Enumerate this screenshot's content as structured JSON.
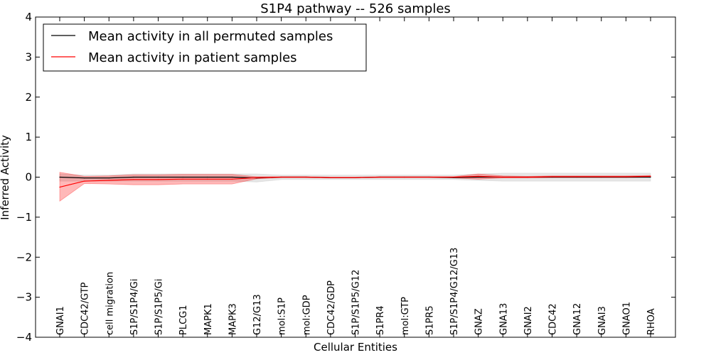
{
  "chart_data": {
    "type": "line",
    "title": "S1P4 pathway -- 526 samples",
    "xlabel": "Cellular Entities",
    "ylabel": "Inferred Activity",
    "ylim": [
      -4,
      4
    ],
    "yticks": [
      4,
      3,
      2,
      1,
      0,
      -1,
      -2,
      -3,
      -4
    ],
    "ytick_labels": [
      "4",
      "3",
      "2",
      "1",
      "0",
      "−1",
      "−2",
      "−3",
      "−4"
    ],
    "grid": false,
    "legend_position": "top-left",
    "categories": [
      "GNAI1",
      "CDC42/GTP",
      "cell migration",
      "S1P/S1P4/Gi",
      "S1P/S1P5/Gi",
      "PLCG1",
      "MAPK1",
      "MAPK3",
      "G12/G13",
      "mol:S1P",
      "mol:GDP",
      "CDC42/GDP",
      "S1P/S1P5/G12",
      "S1PR4",
      "mol:GTP",
      "S1PR5",
      "S1P/S1P4/G12/G13",
      "GNAZ",
      "GNA13",
      "GNAI2",
      "CDC42",
      "GNA12",
      "GNAI3",
      "GNAO1",
      "RHOA"
    ],
    "series": [
      {
        "name": "Mean activity in all permuted samples",
        "color": "#000000",
        "band_color": "#c8c8c8",
        "values": [
          0.0,
          -0.02,
          -0.02,
          0.0,
          0.0,
          0.0,
          0.0,
          0.0,
          -0.02,
          0.0,
          0.0,
          -0.01,
          -0.01,
          0.0,
          0.0,
          0.0,
          -0.01,
          0.0,
          0.0,
          0.0,
          0.0,
          0.0,
          0.0,
          0.0,
          0.0
        ],
        "upper": [
          0.08,
          0.05,
          0.05,
          0.08,
          0.08,
          0.08,
          0.08,
          0.08,
          0.08,
          0.05,
          0.05,
          0.05,
          0.05,
          0.05,
          0.05,
          0.05,
          0.05,
          0.08,
          0.1,
          0.1,
          0.1,
          0.1,
          0.1,
          0.1,
          0.1
        ],
        "lower": [
          -0.1,
          -0.1,
          -0.1,
          -0.1,
          -0.1,
          -0.1,
          -0.1,
          -0.1,
          -0.12,
          -0.06,
          -0.06,
          -0.06,
          -0.06,
          -0.06,
          -0.06,
          -0.06,
          -0.06,
          -0.08,
          -0.1,
          -0.1,
          -0.1,
          -0.1,
          -0.1,
          -0.1,
          -0.1
        ]
      },
      {
        "name": "Mean activity in patient samples",
        "color": "#ff0000",
        "band_color": "#ff0000",
        "values": [
          -0.25,
          -0.1,
          -0.08,
          -0.06,
          -0.06,
          -0.05,
          -0.05,
          -0.05,
          -0.01,
          0.0,
          0.0,
          -0.01,
          -0.01,
          0.0,
          0.0,
          0.0,
          0.0,
          0.02,
          0.0,
          0.0,
          0.01,
          0.01,
          0.01,
          0.01,
          0.02
        ],
        "upper": [
          0.12,
          0.02,
          0.03,
          0.06,
          0.06,
          0.07,
          0.07,
          0.07,
          0.01,
          0.01,
          0.01,
          0.0,
          0.0,
          0.01,
          0.01,
          0.01,
          0.01,
          0.08,
          0.03,
          0.02,
          0.03,
          0.03,
          0.03,
          0.03,
          0.04
        ],
        "lower": [
          -0.6,
          -0.16,
          -0.17,
          -0.19,
          -0.19,
          -0.17,
          -0.17,
          -0.17,
          -0.04,
          -0.01,
          -0.01,
          -0.02,
          -0.02,
          -0.01,
          -0.01,
          -0.01,
          -0.02,
          -0.05,
          -0.02,
          -0.02,
          -0.01,
          -0.01,
          -0.01,
          -0.01,
          0.0
        ]
      }
    ]
  }
}
